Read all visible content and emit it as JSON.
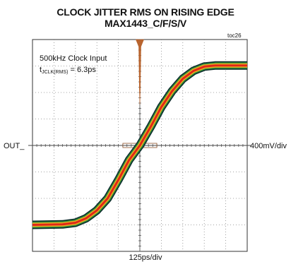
{
  "chart_data": {
    "type": "line",
    "title": "CLOCK JITTER RMS ON RISING EDGE",
    "subtitle": "MAX1443_C/F/S/V",
    "figure_id": "toc26",
    "xlabel": "125ps/div",
    "ylabel_left": "OUT_",
    "ylabel_right": "400mV/div",
    "annotation_line1": "500kHz Clock Input",
    "annotation_line2": {
      "prefix": "t",
      "sub": "JCLK(RMS)",
      "suffix": " = 6.3ps"
    },
    "grid": true,
    "x_divisions": 10,
    "y_divisions": 8,
    "ylim_div": [
      -4,
      4
    ],
    "series": [
      {
        "x_div": [
          0,
          1.4,
          2.0,
          2.5,
          3.0,
          3.5,
          4.0,
          4.5,
          5.0,
          5.5,
          6.0,
          6.5,
          7.0,
          7.5,
          8.0,
          8.5,
          10
        ],
        "y_div": [
          -3.0,
          -2.98,
          -2.92,
          -2.75,
          -2.45,
          -2.0,
          -1.3,
          -0.55,
          0.0,
          0.7,
          1.45,
          2.05,
          2.52,
          2.82,
          2.98,
          3.02,
          3.02
        ]
      }
    ],
    "histogram": {
      "center_x_div": 5.0,
      "rms_spread_x_div": 0.05
    },
    "colors": {
      "trace_outer": "#0c2b2b",
      "trace_mid": "#e8b020",
      "trace_core": "#e02818",
      "histogram": "#b8642e"
    }
  }
}
